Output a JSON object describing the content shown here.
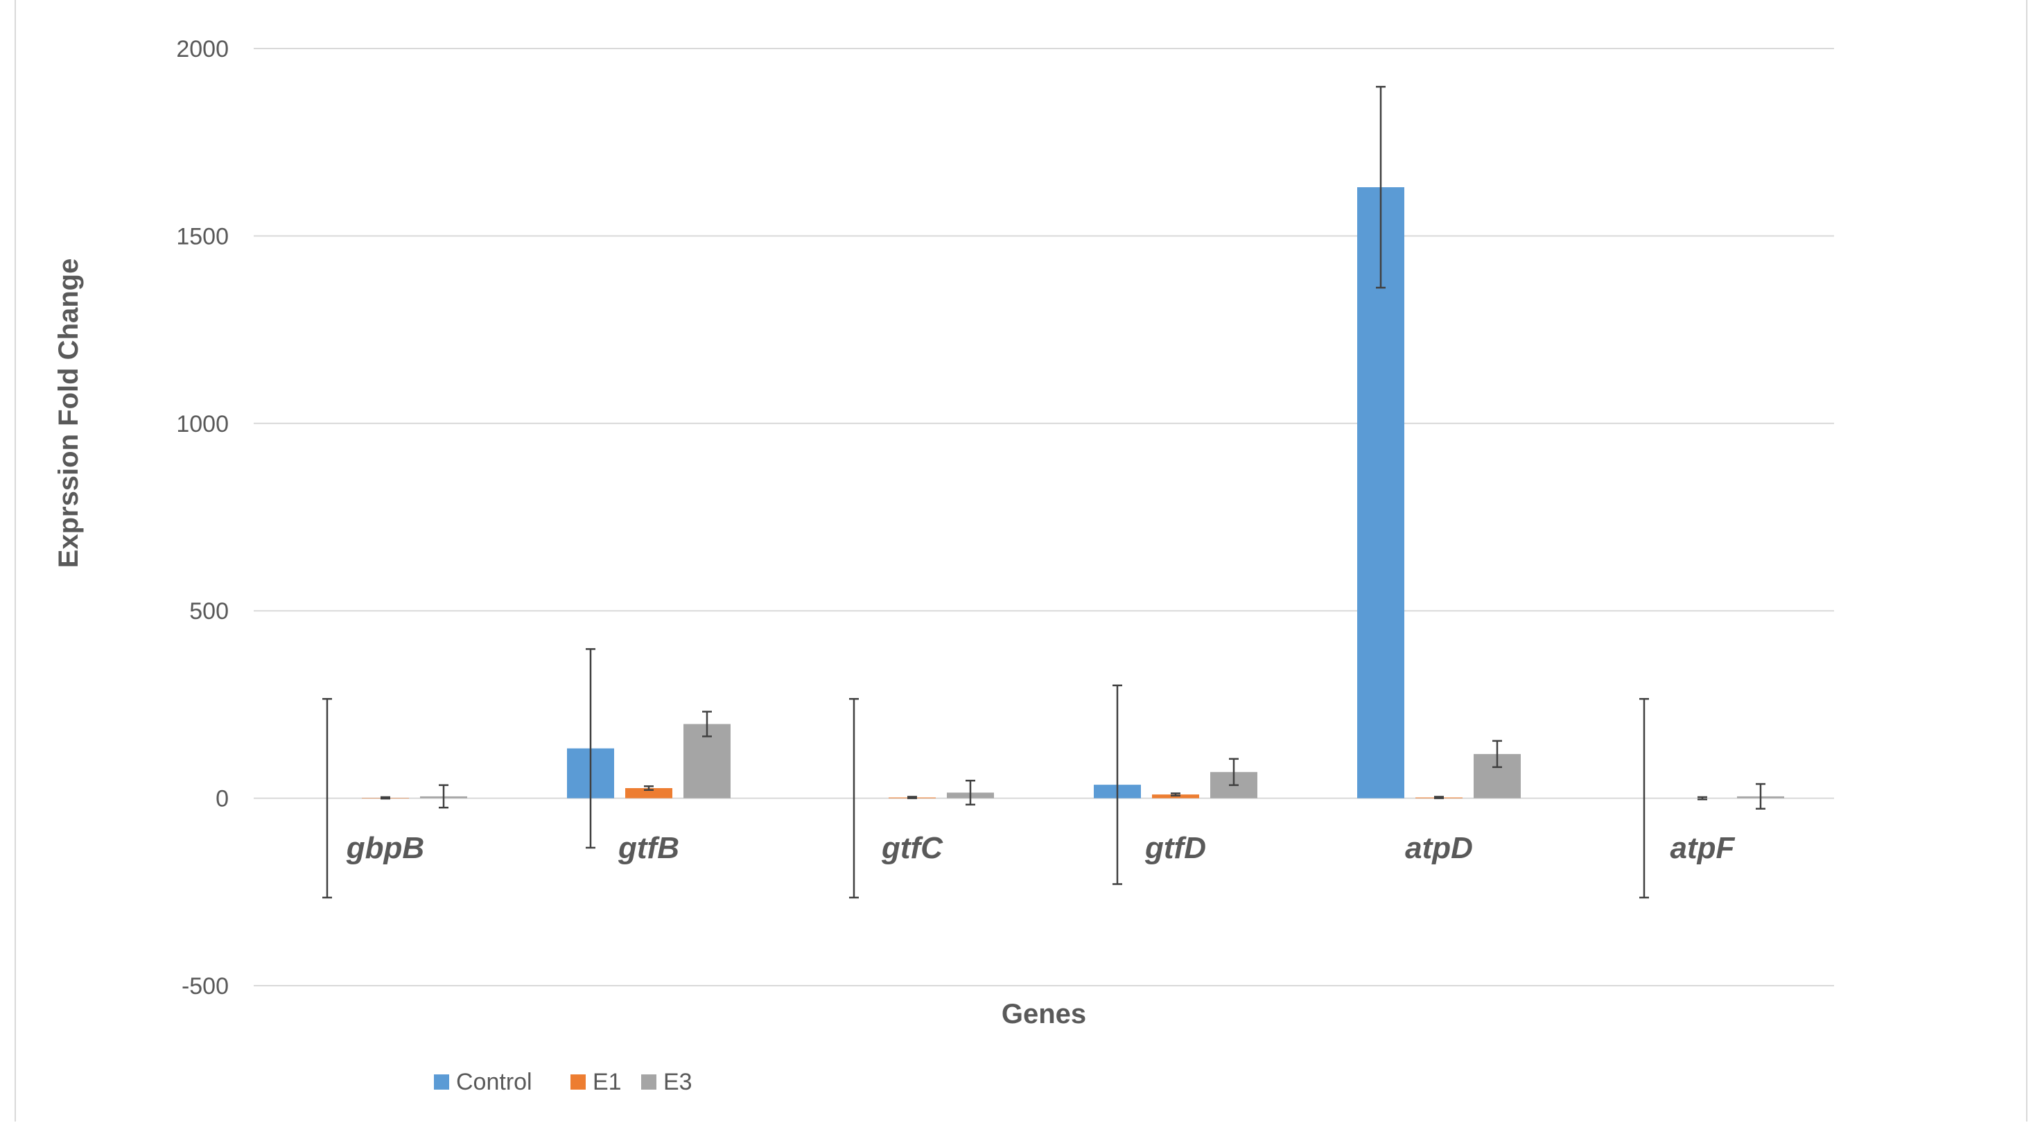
{
  "chart_data": {
    "type": "bar",
    "xlabel": "Genes",
    "ylabel": "Exprssion Fold Change",
    "ylim": [
      -500,
      2000
    ],
    "yticks": [
      -500,
      0,
      500,
      1000,
      1500,
      2000
    ],
    "grid": true,
    "legend_position": "bottom-left",
    "categories": [
      "gbpB",
      "gtfB",
      "gtfC",
      "gtfD",
      "atpD",
      "atpF"
    ],
    "series": [
      {
        "name": "Control",
        "color": "#5B9BD5",
        "values": [
          0,
          133,
          0,
          36,
          1630,
          0
        ],
        "error": [
          265,
          265,
          265,
          265,
          268,
          265
        ]
      },
      {
        "name": "E1",
        "color": "#ED7D31",
        "values": [
          1,
          27,
          2,
          10,
          2,
          0
        ],
        "error": [
          2,
          5,
          2,
          3,
          2,
          3
        ]
      },
      {
        "name": "E3",
        "color": "#A5A5A5",
        "values": [
          5,
          198,
          15,
          70,
          118,
          5
        ],
        "error": [
          30,
          33,
          32,
          35,
          35,
          33
        ]
      }
    ]
  }
}
